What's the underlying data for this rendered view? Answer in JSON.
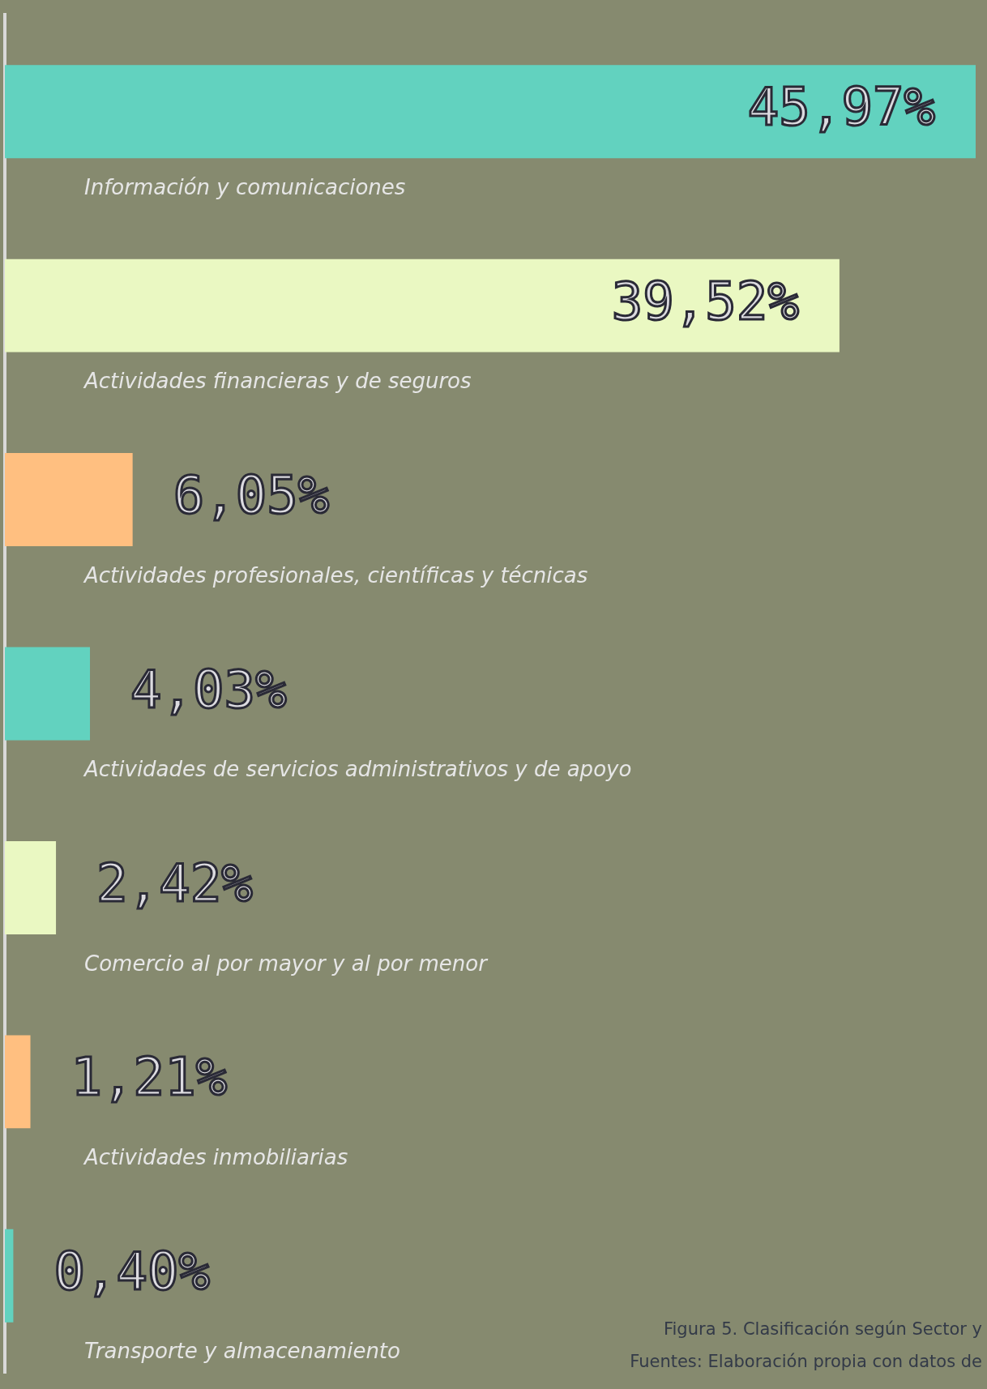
{
  "chart_data": {
    "type": "bar",
    "orientation": "horizontal",
    "categories": [
      "Información y comunicaciones",
      "Actividades financieras y de seguros",
      "Actividades profesionales, científicas y técnicas",
      "Actividades de servicios administrativos y de apoyo",
      "Comercio al por mayor y al por menor",
      "Actividades inmobiliarias",
      "Transporte y almacenamiento"
    ],
    "values": [
      45.97,
      39.52,
      6.05,
      4.03,
      2.42,
      1.21,
      0.4
    ],
    "value_labels": [
      "45,97%",
      "39,52%",
      "6,05%",
      "4,03%",
      "2,42%",
      "1,21%",
      "0,40%"
    ],
    "colors": [
      "#62d2bf",
      "#eaf8c2",
      "#ffbf80",
      "#62d2bf",
      "#eaf8c2",
      "#ffbf80",
      "#62d2bf"
    ],
    "tick_labels": false,
    "grid": false,
    "legend": false,
    "annotations": [
      "Figura 5. Clasificación según Sector y",
      "Fuentes: Elaboración propia con datos de"
    ]
  }
}
